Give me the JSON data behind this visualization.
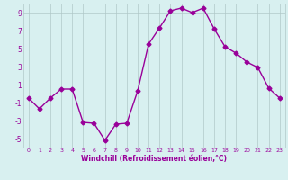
{
  "x": [
    0,
    1,
    2,
    3,
    4,
    5,
    6,
    7,
    8,
    9,
    10,
    11,
    12,
    13,
    14,
    15,
    16,
    17,
    18,
    19,
    20,
    21,
    22,
    23
  ],
  "y": [
    -0.5,
    -1.7,
    -0.5,
    0.5,
    0.5,
    -3.2,
    -3.3,
    -5.2,
    -3.4,
    -3.3,
    0.3,
    5.5,
    7.3,
    9.2,
    9.5,
    9.0,
    9.5,
    7.2,
    5.2,
    4.5,
    3.5,
    2.9,
    0.6,
    -0.5
  ],
  "line_color": "#990099",
  "marker": "D",
  "markersize": 2.5,
  "linewidth": 1.0,
  "bg_color": "#d8f0f0",
  "grid_color": "#b0c8c8",
  "xlabel": "Windchill (Refroidissement éolien,°C)",
  "ylim": [
    -6,
    10
  ],
  "xlim": [
    -0.5,
    23.5
  ],
  "yticks": [
    -5,
    -3,
    -1,
    1,
    3,
    5,
    7,
    9
  ],
  "xticks": [
    0,
    1,
    2,
    3,
    4,
    5,
    6,
    7,
    8,
    9,
    10,
    11,
    12,
    13,
    14,
    15,
    16,
    17,
    18,
    19,
    20,
    21,
    22,
    23
  ]
}
